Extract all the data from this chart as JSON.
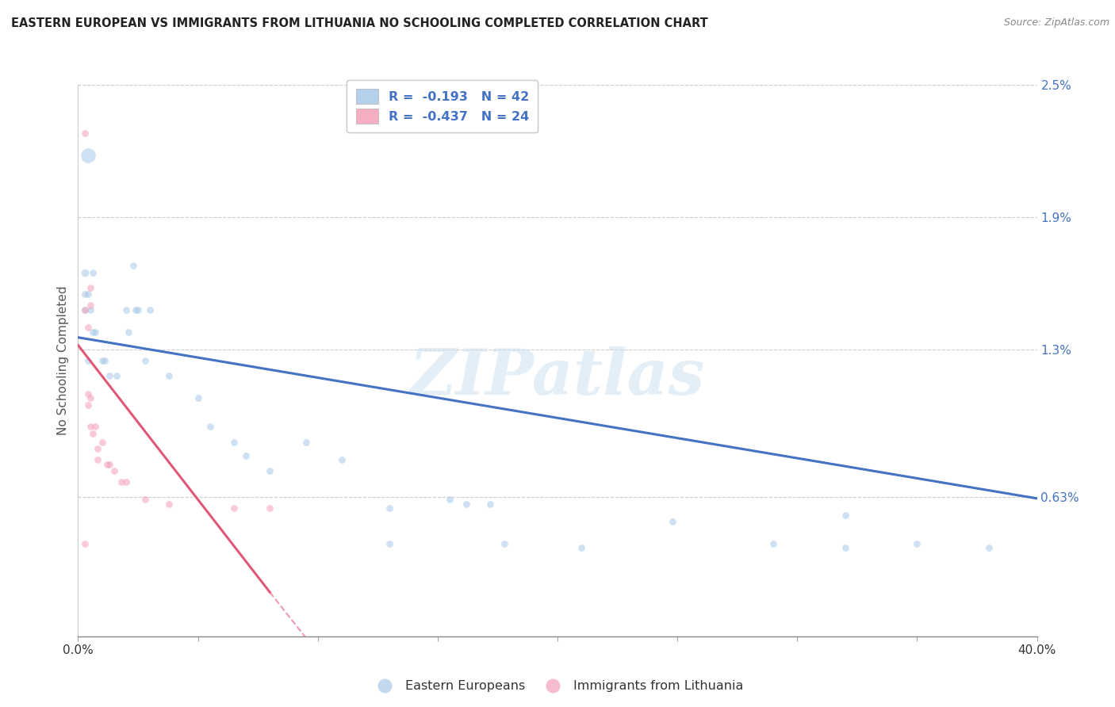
{
  "title": "EASTERN EUROPEAN VS IMMIGRANTS FROM LITHUANIA NO SCHOOLING COMPLETED CORRELATION CHART",
  "source": "Source: ZipAtlas.com",
  "ylabel": "No Schooling Completed",
  "xlim": [
    0.0,
    0.4
  ],
  "ylim": [
    0.0,
    0.025
  ],
  "yticks": [
    0.0063,
    0.013,
    0.019,
    0.025
  ],
  "ytick_labels": [
    "0.63%",
    "1.3%",
    "1.9%",
    "2.5%"
  ],
  "legend_r1": "R =  -0.193",
  "legend_n1": "N = 42",
  "legend_r2": "R =  -0.437",
  "legend_n2": "N = 24",
  "blue_color": "#a8c8e8",
  "pink_color": "#f4a0b8",
  "blue_line_color": "#4472c4",
  "pink_line_color": "#e05878",
  "tick_color": "#4472c4",
  "grid_color": "#c8c8c8",
  "background_color": "#ffffff",
  "watermark": "ZIPatlas",
  "blue_points": [
    [
      0.004,
      0.0218,
      180
    ],
    [
      0.003,
      0.0165,
      50
    ],
    [
      0.003,
      0.0148,
      40
    ],
    [
      0.003,
      0.0155,
      40
    ],
    [
      0.004,
      0.0155,
      40
    ],
    [
      0.004,
      0.0125,
      40
    ],
    [
      0.005,
      0.0148,
      40
    ],
    [
      0.02,
      0.0148,
      40
    ],
    [
      0.021,
      0.0138,
      40
    ],
    [
      0.024,
      0.0148,
      40
    ],
    [
      0.006,
      0.0138,
      40
    ],
    [
      0.007,
      0.0138,
      40
    ],
    [
      0.025,
      0.0148,
      40
    ],
    [
      0.01,
      0.0125,
      40
    ],
    [
      0.011,
      0.0125,
      40
    ],
    [
      0.013,
      0.0118,
      40
    ],
    [
      0.016,
      0.0118,
      40
    ],
    [
      0.006,
      0.0165,
      40
    ],
    [
      0.023,
      0.0168,
      40
    ],
    [
      0.03,
      0.0148,
      40
    ],
    [
      0.028,
      0.0125,
      40
    ],
    [
      0.038,
      0.0118,
      40
    ],
    [
      0.05,
      0.0108,
      40
    ],
    [
      0.055,
      0.0095,
      40
    ],
    [
      0.065,
      0.0088,
      40
    ],
    [
      0.07,
      0.0082,
      40
    ],
    [
      0.08,
      0.0075,
      40
    ],
    [
      0.095,
      0.0088,
      40
    ],
    [
      0.11,
      0.008,
      40
    ],
    [
      0.13,
      0.0058,
      40
    ],
    [
      0.13,
      0.0042,
      40
    ],
    [
      0.155,
      0.0062,
      40
    ],
    [
      0.162,
      0.006,
      40
    ],
    [
      0.172,
      0.006,
      40
    ],
    [
      0.248,
      0.0052,
      40
    ],
    [
      0.29,
      0.0042,
      40
    ],
    [
      0.32,
      0.004,
      40
    ],
    [
      0.32,
      0.0055,
      40
    ],
    [
      0.178,
      0.0042,
      40
    ],
    [
      0.21,
      0.004,
      40
    ],
    [
      0.35,
      0.0042,
      40
    ],
    [
      0.38,
      0.004,
      40
    ]
  ],
  "pink_points": [
    [
      0.003,
      0.0228,
      40
    ],
    [
      0.003,
      0.0148,
      40
    ],
    [
      0.004,
      0.014,
      40
    ],
    [
      0.005,
      0.015,
      40
    ],
    [
      0.005,
      0.0158,
      40
    ],
    [
      0.004,
      0.011,
      40
    ],
    [
      0.004,
      0.0105,
      40
    ],
    [
      0.005,
      0.0108,
      40
    ],
    [
      0.005,
      0.0095,
      40
    ],
    [
      0.006,
      0.0092,
      40
    ],
    [
      0.007,
      0.0095,
      40
    ],
    [
      0.008,
      0.0085,
      40
    ],
    [
      0.008,
      0.008,
      40
    ],
    [
      0.01,
      0.0088,
      40
    ],
    [
      0.012,
      0.0078,
      40
    ],
    [
      0.013,
      0.0078,
      40
    ],
    [
      0.015,
      0.0075,
      40
    ],
    [
      0.018,
      0.007,
      40
    ],
    [
      0.02,
      0.007,
      40
    ],
    [
      0.028,
      0.0062,
      40
    ],
    [
      0.038,
      0.006,
      40
    ],
    [
      0.065,
      0.0058,
      40
    ],
    [
      0.08,
      0.0058,
      40
    ],
    [
      0.003,
      0.0042,
      40
    ]
  ],
  "blue_trendline": [
    [
      0.0,
      0.01355
    ],
    [
      0.4,
      0.00625
    ]
  ],
  "pink_trendline_solid": [
    [
      0.0,
      0.0132
    ],
    [
      0.08,
      0.002
    ]
  ],
  "pink_trendline_dash": [
    [
      0.08,
      0.002
    ],
    [
      0.16,
      -0.009
    ]
  ]
}
